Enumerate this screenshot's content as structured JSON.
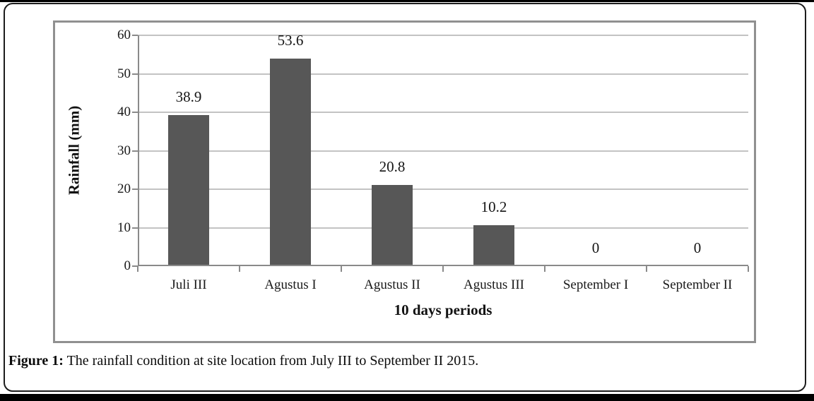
{
  "figure": {
    "caption_label": "Figure 1:",
    "caption_text": " The rainfall condition at site location from July III to September II 2015."
  },
  "chart_data": {
    "type": "bar",
    "title": "",
    "categories": [
      "Juli III",
      "Agustus I",
      "Agustus II",
      "Agustus III",
      "September I",
      "September II"
    ],
    "values": [
      38.9,
      53.6,
      20.8,
      10.2,
      0,
      0
    ],
    "data_labels": [
      "38.9",
      "53.6",
      "20.8",
      "10.2",
      "0",
      "0"
    ],
    "xlabel": "10 days periods",
    "ylabel": "Rainfall  (mm)",
    "ylim": [
      0,
      60
    ],
    "yticks": [
      0,
      10,
      20,
      30,
      40,
      50,
      60
    ],
    "grid": "horizontal",
    "legend": "none",
    "colors": {
      "bar": "#575757",
      "gridline": "#c3c3c3",
      "axis": "#8a8a8a",
      "frame": "#909090",
      "panel_border": "#1c1c1c",
      "page_edge": "#000000",
      "text": "#111111"
    }
  }
}
